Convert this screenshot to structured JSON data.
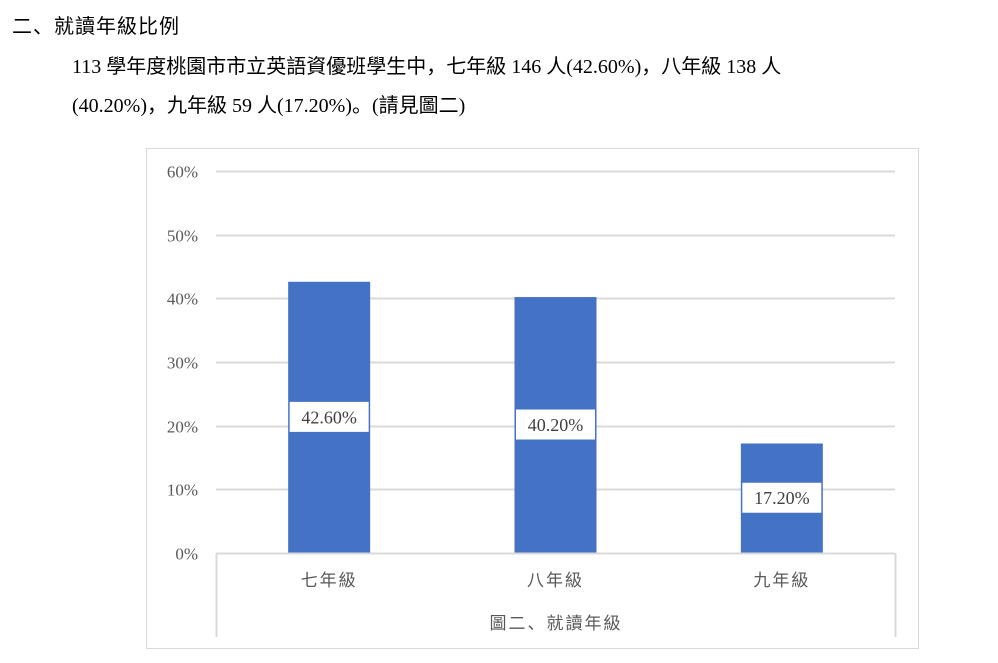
{
  "document": {
    "heading": "二、就讀年級比例",
    "paragraph_line1": "113 學年度桃園市市立英語資優班學生中，七年級 146 人(42.60%)，八年級 138 人",
    "paragraph_line2": "(40.20%)，九年級 59 人(17.20%)。(請見圖二)"
  },
  "chart_data": {
    "type": "bar",
    "categories": [
      "七年級",
      "八年級",
      "九年級"
    ],
    "values": [
      42.6,
      40.2,
      17.2
    ],
    "data_labels": [
      "42.60%",
      "40.20%",
      "17.20%"
    ],
    "title": "",
    "xlabel": "圖二、就讀年級",
    "ylabel": "",
    "ylim": [
      0,
      60
    ],
    "yticks": [
      "0%",
      "10%",
      "20%",
      "30%",
      "40%",
      "50%",
      "60%"
    ],
    "grid": true,
    "legend": "none",
    "bar_color": "#4472C4",
    "grid_color": "#D9D9D9"
  }
}
